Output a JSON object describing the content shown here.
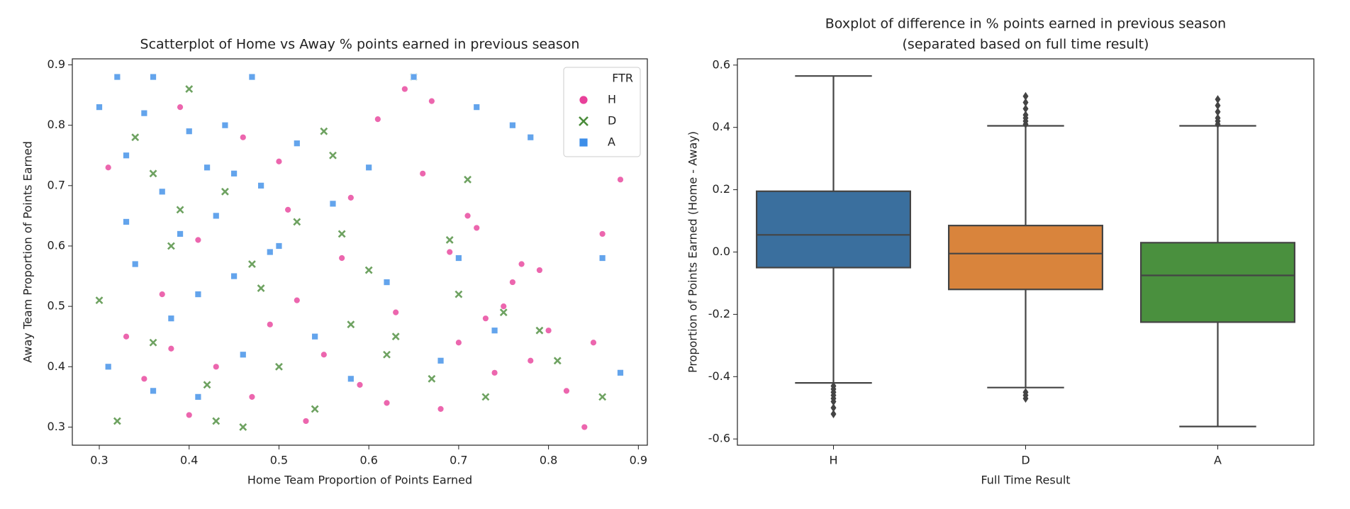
{
  "chart_data": [
    {
      "type": "scatter",
      "title": "Scatterplot of Home vs Away % points earned in previous season",
      "x_label": "Home Team Proportion of Points Earned",
      "y_label": "Away Team Proportion of Points Earned",
      "xlim": [
        0.27,
        0.91
      ],
      "ylim": [
        0.27,
        0.91
      ],
      "xticks": [
        0.3,
        0.4,
        0.5,
        0.6,
        0.7,
        0.8,
        0.9
      ],
      "yticks": [
        0.3,
        0.4,
        0.5,
        0.6,
        0.7,
        0.8,
        0.9
      ],
      "grid": false,
      "legend_title": "FTR",
      "legend": "upper right",
      "series": [
        {
          "name": "H",
          "color": "#e8409a",
          "marker": "circle",
          "x": [
            0.31,
            0.33,
            0.35,
            0.37,
            0.39,
            0.41,
            0.43,
            0.45,
            0.47,
            0.49,
            0.51,
            0.53,
            0.55,
            0.57,
            0.59,
            0.61,
            0.63,
            0.66,
            0.68,
            0.7,
            0.72,
            0.74,
            0.76,
            0.78,
            0.8,
            0.82,
            0.84,
            0.86,
            0.88,
            0.4,
            0.46,
            0.52,
            0.58,
            0.64,
            0.69,
            0.73,
            0.77,
            0.38,
            0.5,
            0.62,
            0.67,
            0.71,
            0.75,
            0.79,
            0.85
          ],
          "y": [
            0.73,
            0.45,
            0.38,
            0.52,
            0.83,
            0.61,
            0.4,
            0.55,
            0.35,
            0.47,
            0.66,
            0.31,
            0.42,
            0.58,
            0.37,
            0.81,
            0.49,
            0.72,
            0.33,
            0.44,
            0.63,
            0.39,
            0.54,
            0.41,
            0.46,
            0.36,
            0.3,
            0.62,
            0.71,
            0.32,
            0.78,
            0.51,
            0.68,
            0.86,
            0.59,
            0.48,
            0.57,
            0.43,
            0.74,
            0.34,
            0.84,
            0.65,
            0.5,
            0.56,
            0.44
          ]
        },
        {
          "name": "D",
          "color": "#4a8c3a",
          "marker": "x",
          "x": [
            0.3,
            0.32,
            0.34,
            0.36,
            0.38,
            0.4,
            0.42,
            0.44,
            0.46,
            0.48,
            0.5,
            0.52,
            0.54,
            0.56,
            0.58,
            0.6,
            0.62,
            0.65,
            0.67,
            0.69,
            0.71,
            0.73,
            0.75,
            0.79,
            0.81,
            0.86,
            0.39,
            0.47,
            0.55,
            0.63,
            0.7,
            0.36,
            0.43,
            0.57
          ],
          "y": [
            0.51,
            0.31,
            0.78,
            0.44,
            0.6,
            0.86,
            0.37,
            0.69,
            0.3,
            0.53,
            0.4,
            0.64,
            0.33,
            0.75,
            0.47,
            0.56,
            0.42,
            0.88,
            0.38,
            0.61,
            0.71,
            0.35,
            0.49,
            0.46,
            0.41,
            0.35,
            0.66,
            0.57,
            0.79,
            0.45,
            0.52,
            0.72,
            0.31,
            0.62
          ]
        },
        {
          "name": "A",
          "color": "#3d8ee8",
          "marker": "square",
          "x": [
            0.3,
            0.31,
            0.32,
            0.33,
            0.34,
            0.35,
            0.36,
            0.37,
            0.38,
            0.39,
            0.4,
            0.41,
            0.42,
            0.43,
            0.44,
            0.45,
            0.46,
            0.47,
            0.48,
            0.5,
            0.52,
            0.54,
            0.56,
            0.58,
            0.6,
            0.62,
            0.65,
            0.68,
            0.7,
            0.72,
            0.74,
            0.76,
            0.78,
            0.86,
            0.88,
            0.33,
            0.36,
            0.41,
            0.45,
            0.49
          ],
          "y": [
            0.83,
            0.4,
            0.88,
            0.75,
            0.57,
            0.82,
            0.88,
            0.69,
            0.48,
            0.62,
            0.79,
            0.35,
            0.73,
            0.65,
            0.8,
            0.55,
            0.42,
            0.88,
            0.7,
            0.6,
            0.77,
            0.45,
            0.67,
            0.38,
            0.73,
            0.54,
            0.88,
            0.41,
            0.58,
            0.83,
            0.46,
            0.8,
            0.78,
            0.58,
            0.39,
            0.64,
            0.36,
            0.52,
            0.72,
            0.59
          ]
        }
      ]
    },
    {
      "type": "box",
      "title": "Boxplot of difference in % points earned in previous season",
      "subtitle": "(separated based on full time result)",
      "x_label": "Full Time Result",
      "y_label": "Proportion of Points Earned (Home - Away)",
      "ylim": [
        -0.62,
        0.62
      ],
      "yticks": [
        -0.6,
        -0.4,
        -0.2,
        {
          "value": 0,
          "label": "0.0"
        },
        0.2,
        0.4,
        0.6
      ],
      "grid": false,
      "categories": [
        "H",
        "D",
        "A"
      ],
      "boxes": [
        {
          "color": "#3a6f9e",
          "low": -0.42,
          "q1": -0.05,
          "median": 0.055,
          "q3": 0.195,
          "high": 0.565,
          "outliers": [
            -0.43,
            -0.44,
            -0.45,
            -0.46,
            -0.47,
            -0.48,
            -0.5,
            -0.52
          ]
        },
        {
          "color": "#d9843c",
          "low": -0.435,
          "q1": -0.12,
          "median": -0.005,
          "q3": 0.085,
          "high": 0.405,
          "outliers": [
            0.41,
            0.42,
            0.43,
            0.44,
            0.46,
            0.48,
            0.5,
            -0.45,
            -0.46,
            -0.47
          ]
        },
        {
          "color": "#4a903e",
          "low": -0.56,
          "q1": -0.225,
          "median": -0.075,
          "q3": 0.03,
          "high": 0.405,
          "outliers": [
            0.41,
            0.42,
            0.43,
            0.45,
            0.47,
            0.49
          ]
        }
      ]
    }
  ]
}
